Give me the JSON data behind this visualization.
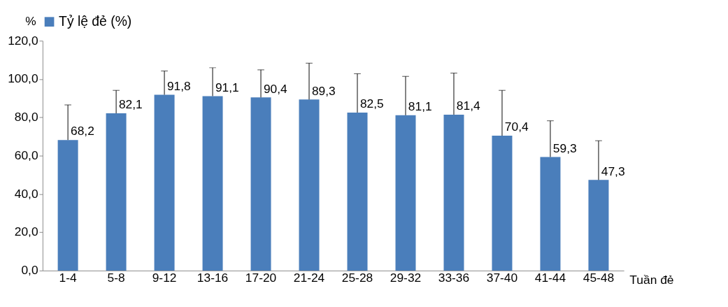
{
  "chart_data": {
    "type": "bar",
    "categories": [
      "1-4",
      "5-8",
      "9-12",
      "13-16",
      "17-20",
      "21-24",
      "25-28",
      "29-32",
      "33-36",
      "37-40",
      "41-44",
      "45-48"
    ],
    "series": [
      {
        "name": "Tỷ lệ đẻ (%)",
        "color": "#4a7ebb",
        "values": [
          68.2,
          82.1,
          91.8,
          91.1,
          90.4,
          89.3,
          82.5,
          81.1,
          81.4,
          70.4,
          59.3,
          47.3
        ],
        "value_labels": [
          "68,2",
          "82,1",
          "91,8",
          "91,1",
          "90,4",
          "89,3",
          "82,5",
          "81,1",
          "81,4",
          "70,4",
          "59,3",
          "47,3"
        ],
        "errors": [
          [
            68.2,
            86.5
          ],
          [
            82.1,
            94.1
          ],
          [
            91.8,
            104.2
          ],
          [
            91.1,
            105.9
          ],
          [
            90.4,
            104.8
          ],
          [
            89.3,
            108.3
          ],
          [
            82.5,
            102.8
          ],
          [
            81.1,
            101.4
          ],
          [
            81.4,
            103.1
          ],
          [
            70.4,
            94.1
          ],
          [
            59.3,
            78.2
          ],
          [
            47.3,
            67.8
          ]
        ]
      }
    ],
    "ylabel": "%",
    "xlabel": "Tuần đẻ",
    "ylim": [
      0,
      120
    ],
    "yticks": [
      {
        "value": 0,
        "label": "0,0"
      },
      {
        "value": 20,
        "label": "20,0"
      },
      {
        "value": 40,
        "label": "40,0"
      },
      {
        "value": 60,
        "label": "60,0"
      },
      {
        "value": 80,
        "label": "80,0"
      },
      {
        "value": 100,
        "label": "100,0"
      },
      {
        "value": 120,
        "label": "120,0"
      }
    ],
    "legend": "top",
    "grid": false
  }
}
